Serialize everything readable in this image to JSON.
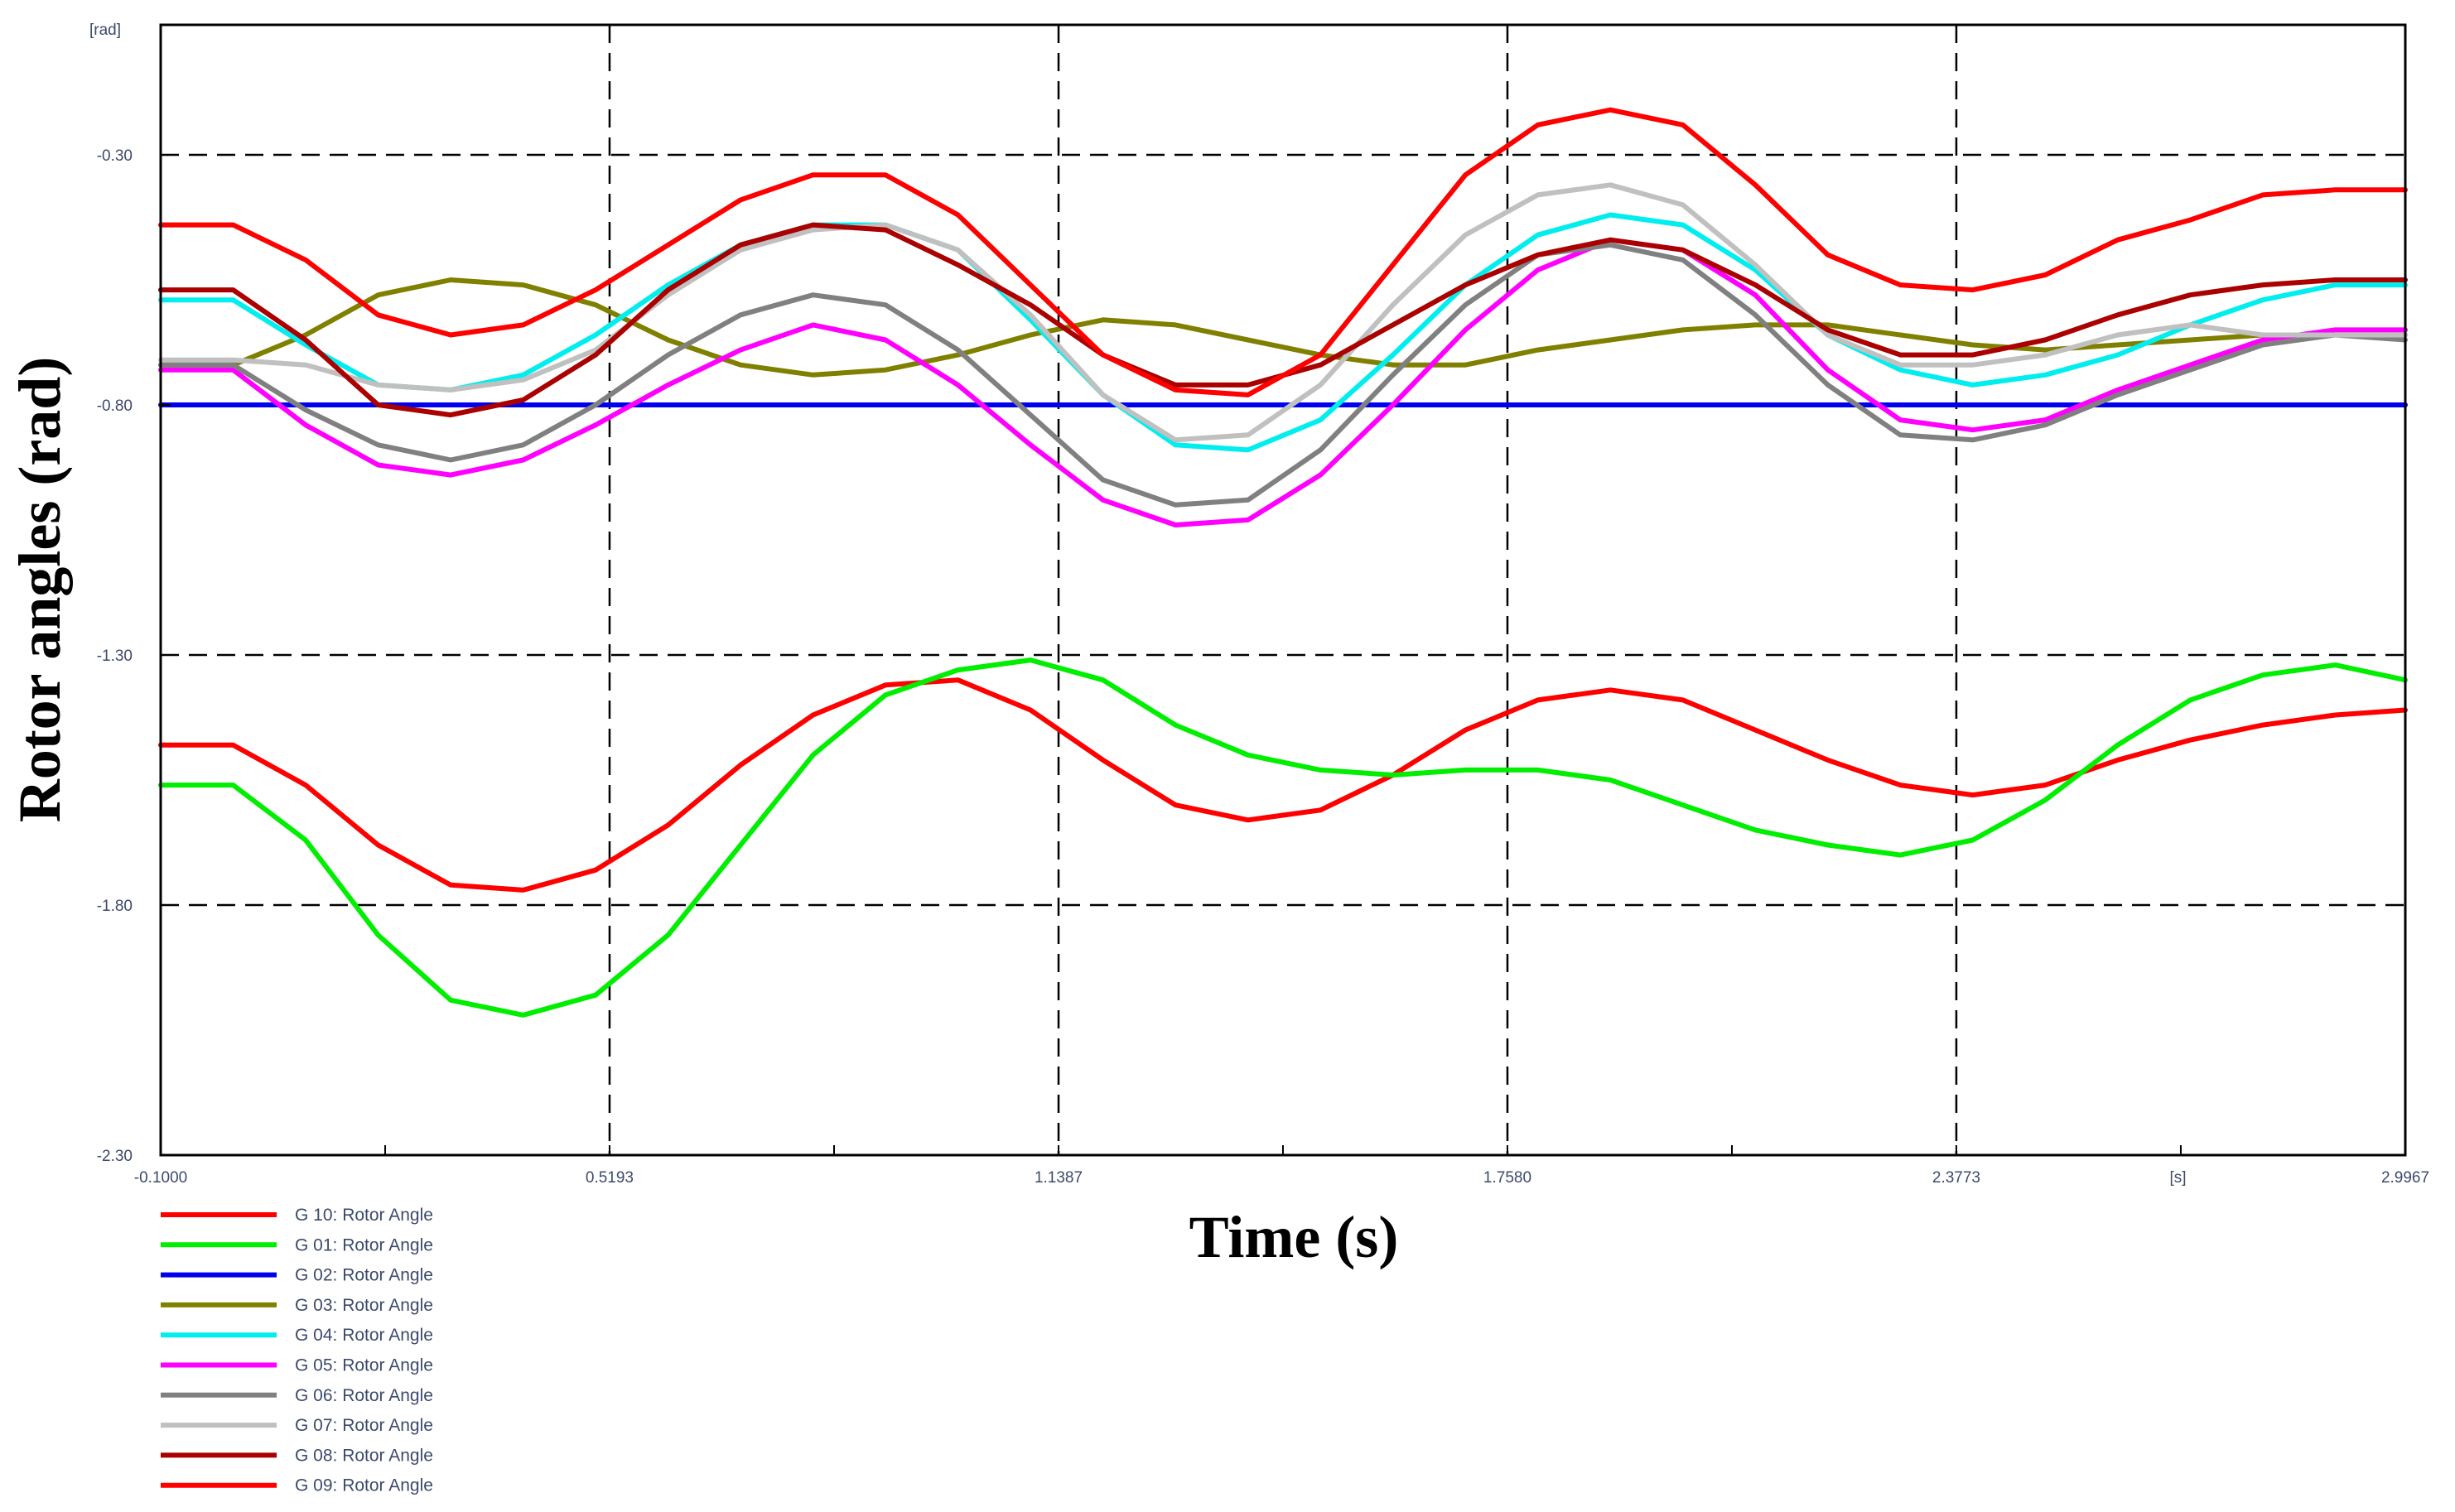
{
  "chart_data": {
    "type": "line",
    "xlabel": "Time (s)",
    "ylabel": "Rotor angles (rad)",
    "y_unit_label": "[rad]",
    "x_unit_label": "[s]",
    "x_unit_position": 2.683,
    "xlim": [
      -0.1,
      2.9967
    ],
    "ylim": [
      -2.3,
      -0.04
    ],
    "xticks": [
      -0.1,
      0.5193,
      1.1387,
      1.758,
      2.3773,
      2.9967
    ],
    "xtick_labels": [
      "-0.1000",
      "0.5193",
      "1.1387",
      "1.7580",
      "2.3773",
      "2.9967"
    ],
    "x_minor_ticks": [
      0.2097,
      0.829,
      1.4483,
      2.0677,
      2.687
    ],
    "yticks": [
      -2.3,
      -1.8,
      -1.3,
      -0.8,
      -0.3
    ],
    "ytick_labels": [
      "-2.30",
      "-1.80",
      "-1.30",
      "-0.80",
      "-0.30"
    ],
    "grid": true,
    "legend_position": "bottom-left",
    "series": [
      {
        "name": "G 10: Rotor Angle",
        "color": "#ff0000",
        "x": [
          -0.1,
          0.0,
          0.1,
          0.2,
          0.3,
          0.4,
          0.5,
          0.6,
          0.7,
          0.8,
          0.9,
          1.0,
          1.1,
          1.2,
          1.3,
          1.4,
          1.5,
          1.6,
          1.7,
          1.8,
          1.9,
          2.0,
          2.1,
          2.2,
          2.3,
          2.4,
          2.5,
          2.6,
          2.7,
          2.8,
          2.9,
          2.9967
        ],
        "y": [
          -1.48,
          -1.48,
          -1.56,
          -1.68,
          -1.76,
          -1.77,
          -1.73,
          -1.64,
          -1.52,
          -1.42,
          -1.36,
          -1.35,
          -1.41,
          -1.51,
          -1.6,
          -1.63,
          -1.61,
          -1.54,
          -1.45,
          -1.39,
          -1.37,
          -1.39,
          -1.45,
          -1.51,
          -1.56,
          -1.58,
          -1.56,
          -1.51,
          -1.47,
          -1.44,
          -1.42,
          -1.41
        ]
      },
      {
        "name": "G 01: Rotor Angle",
        "color": "#00ee00",
        "x": [
          -0.1,
          0.0,
          0.1,
          0.2,
          0.3,
          0.4,
          0.5,
          0.6,
          0.7,
          0.8,
          0.9,
          1.0,
          1.1,
          1.2,
          1.3,
          1.4,
          1.5,
          1.6,
          1.7,
          1.8,
          1.9,
          2.0,
          2.1,
          2.2,
          2.3,
          2.4,
          2.5,
          2.6,
          2.7,
          2.8,
          2.9,
          2.9967
        ],
        "y": [
          -1.56,
          -1.56,
          -1.67,
          -1.86,
          -1.99,
          -2.02,
          -1.98,
          -1.86,
          -1.68,
          -1.5,
          -1.38,
          -1.33,
          -1.31,
          -1.35,
          -1.44,
          -1.5,
          -1.53,
          -1.54,
          -1.53,
          -1.53,
          -1.55,
          -1.6,
          -1.65,
          -1.68,
          -1.7,
          -1.67,
          -1.59,
          -1.48,
          -1.39,
          -1.34,
          -1.32,
          -1.35
        ]
      },
      {
        "name": "G 02: Rotor Angle",
        "color": "#0000ee",
        "x": [
          -0.1,
          2.9967
        ],
        "y": [
          -0.8,
          -0.8
        ]
      },
      {
        "name": "G 03: Rotor Angle",
        "color": "#808000",
        "x": [
          -0.1,
          0.0,
          0.1,
          0.2,
          0.3,
          0.4,
          0.5,
          0.6,
          0.7,
          0.8,
          0.9,
          1.0,
          1.1,
          1.2,
          1.3,
          1.4,
          1.5,
          1.6,
          1.7,
          1.8,
          1.9,
          2.0,
          2.1,
          2.2,
          2.3,
          2.4,
          2.5,
          2.6,
          2.7,
          2.8,
          2.9,
          2.9967
        ],
        "y": [
          -0.72,
          -0.72,
          -0.66,
          -0.58,
          -0.55,
          -0.56,
          -0.6,
          -0.67,
          -0.72,
          -0.74,
          -0.73,
          -0.7,
          -0.66,
          -0.63,
          -0.64,
          -0.67,
          -0.7,
          -0.72,
          -0.72,
          -0.69,
          -0.67,
          -0.65,
          -0.64,
          -0.64,
          -0.66,
          -0.68,
          -0.69,
          -0.68,
          -0.67,
          -0.66,
          -0.66,
          -0.66
        ]
      },
      {
        "name": "G 04: Rotor Angle",
        "color": "#00eeee",
        "x": [
          -0.1,
          0.0,
          0.1,
          0.2,
          0.3,
          0.4,
          0.5,
          0.6,
          0.7,
          0.8,
          0.9,
          1.0,
          1.1,
          1.2,
          1.3,
          1.4,
          1.5,
          1.6,
          1.7,
          1.8,
          1.9,
          2.0,
          2.1,
          2.2,
          2.3,
          2.4,
          2.5,
          2.6,
          2.7,
          2.8,
          2.9,
          2.9967
        ],
        "y": [
          -0.59,
          -0.59,
          -0.68,
          -0.76,
          -0.77,
          -0.74,
          -0.66,
          -0.56,
          -0.48,
          -0.44,
          -0.44,
          -0.49,
          -0.63,
          -0.78,
          -0.88,
          -0.89,
          -0.83,
          -0.7,
          -0.56,
          -0.46,
          -0.42,
          -0.44,
          -0.53,
          -0.66,
          -0.73,
          -0.76,
          -0.74,
          -0.7,
          -0.64,
          -0.59,
          -0.56,
          -0.56
        ]
      },
      {
        "name": "G 05: Rotor Angle",
        "color": "#ff00ff",
        "x": [
          -0.1,
          0.0,
          0.1,
          0.2,
          0.3,
          0.4,
          0.5,
          0.6,
          0.7,
          0.8,
          0.9,
          1.0,
          1.1,
          1.2,
          1.3,
          1.4,
          1.5,
          1.6,
          1.7,
          1.8,
          1.9,
          2.0,
          2.1,
          2.2,
          2.3,
          2.4,
          2.5,
          2.6,
          2.7,
          2.8,
          2.9,
          2.9967
        ],
        "y": [
          -0.73,
          -0.73,
          -0.84,
          -0.92,
          -0.94,
          -0.91,
          -0.84,
          -0.76,
          -0.69,
          -0.64,
          -0.67,
          -0.76,
          -0.88,
          -0.99,
          -1.04,
          -1.03,
          -0.94,
          -0.8,
          -0.65,
          -0.53,
          -0.47,
          -0.49,
          -0.58,
          -0.73,
          -0.83,
          -0.85,
          -0.83,
          -0.77,
          -0.72,
          -0.67,
          -0.65,
          -0.65
        ]
      },
      {
        "name": "G 06: Rotor Angle",
        "color": "#808080",
        "x": [
          -0.1,
          0.0,
          0.1,
          0.2,
          0.3,
          0.4,
          0.5,
          0.6,
          0.7,
          0.8,
          0.9,
          1.0,
          1.1,
          1.2,
          1.3,
          1.4,
          1.5,
          1.6,
          1.7,
          1.8,
          1.9,
          2.0,
          2.1,
          2.2,
          2.3,
          2.4,
          2.5,
          2.6,
          2.7,
          2.8,
          2.9,
          2.9967
        ],
        "y": [
          -0.72,
          -0.72,
          -0.81,
          -0.88,
          -0.91,
          -0.88,
          -0.8,
          -0.7,
          -0.62,
          -0.58,
          -0.6,
          -0.69,
          -0.82,
          -0.95,
          -1.0,
          -0.99,
          -0.89,
          -0.74,
          -0.6,
          -0.5,
          -0.48,
          -0.51,
          -0.62,
          -0.76,
          -0.86,
          -0.87,
          -0.84,
          -0.78,
          -0.73,
          -0.68,
          -0.66,
          -0.67
        ]
      },
      {
        "name": "G 07: Rotor Angle",
        "color": "#c0c0c0",
        "x": [
          -0.1,
          0.0,
          0.1,
          0.2,
          0.3,
          0.4,
          0.5,
          0.6,
          0.7,
          0.8,
          0.9,
          1.0,
          1.1,
          1.2,
          1.3,
          1.4,
          1.5,
          1.6,
          1.7,
          1.8,
          1.9,
          2.0,
          2.1,
          2.2,
          2.3,
          2.4,
          2.5,
          2.6,
          2.7,
          2.8,
          2.9,
          2.9967
        ],
        "y": [
          -0.71,
          -0.71,
          -0.72,
          -0.76,
          -0.77,
          -0.75,
          -0.69,
          -0.58,
          -0.49,
          -0.45,
          -0.44,
          -0.49,
          -0.62,
          -0.78,
          -0.87,
          -0.86,
          -0.76,
          -0.6,
          -0.46,
          -0.38,
          -0.36,
          -0.4,
          -0.52,
          -0.66,
          -0.72,
          -0.72,
          -0.7,
          -0.66,
          -0.64,
          -0.66,
          -0.66,
          -0.66
        ]
      },
      {
        "name": "G 08: Rotor Angle",
        "color": "#aa0000",
        "x": [
          -0.1,
          0.0,
          0.1,
          0.2,
          0.3,
          0.4,
          0.5,
          0.6,
          0.7,
          0.8,
          0.9,
          1.0,
          1.1,
          1.2,
          1.3,
          1.4,
          1.5,
          1.6,
          1.7,
          1.8,
          1.9,
          2.0,
          2.1,
          2.2,
          2.3,
          2.4,
          2.5,
          2.6,
          2.7,
          2.8,
          2.9,
          2.9967
        ],
        "y": [
          -0.57,
          -0.57,
          -0.67,
          -0.8,
          -0.82,
          -0.79,
          -0.7,
          -0.57,
          -0.48,
          -0.44,
          -0.45,
          -0.52,
          -0.6,
          -0.7,
          -0.76,
          -0.76,
          -0.72,
          -0.64,
          -0.56,
          -0.5,
          -0.47,
          -0.49,
          -0.56,
          -0.65,
          -0.7,
          -0.7,
          -0.67,
          -0.62,
          -0.58,
          -0.56,
          -0.55,
          -0.55
        ]
      },
      {
        "name": "G 09: Rotor Angle",
        "color": "#ff0000",
        "x": [
          -0.1,
          0.0,
          0.1,
          0.2,
          0.3,
          0.4,
          0.5,
          0.6,
          0.7,
          0.8,
          0.9,
          1.0,
          1.1,
          1.2,
          1.3,
          1.4,
          1.5,
          1.6,
          1.7,
          1.8,
          1.9,
          2.0,
          2.1,
          2.2,
          2.3,
          2.4,
          2.5,
          2.6,
          2.7,
          2.8,
          2.9,
          2.9967
        ],
        "y": [
          -0.44,
          -0.44,
          -0.51,
          -0.62,
          -0.66,
          -0.64,
          -0.57,
          -0.48,
          -0.39,
          -0.34,
          -0.34,
          -0.42,
          -0.56,
          -0.7,
          -0.77,
          -0.78,
          -0.7,
          -0.52,
          -0.34,
          -0.24,
          -0.21,
          -0.24,
          -0.36,
          -0.5,
          -0.56,
          -0.57,
          -0.54,
          -0.47,
          -0.43,
          -0.38,
          -0.37,
          -0.37
        ]
      }
    ]
  }
}
